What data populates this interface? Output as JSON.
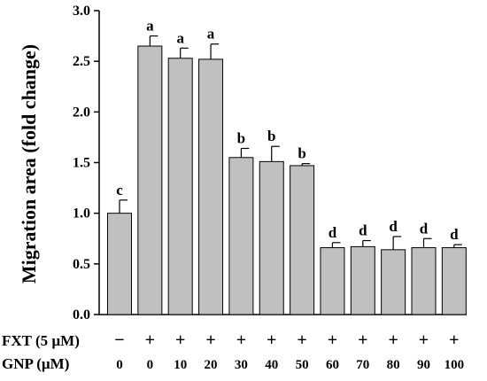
{
  "chart_data": {
    "type": "bar",
    "title": "",
    "xlabel": "",
    "ylabel": "Migration area (fold change)",
    "ylim": [
      0,
      3.0
    ],
    "yticks": [
      "0.0",
      "0.5",
      "1.0",
      "1.5",
      "2.0",
      "2.5",
      "3.0"
    ],
    "grid": false,
    "legend": "none",
    "bar_color": "#c0c0c0",
    "edge_color": "#000000",
    "row_labels": [
      "FXT (5 µM)",
      "GNP (µM)"
    ],
    "fxt": [
      "−",
      "+",
      "+",
      "+",
      "+",
      "+",
      "+",
      "+",
      "+",
      "+",
      "+",
      "+"
    ],
    "categories": [
      "0",
      "0",
      "10",
      "20",
      "30",
      "40",
      "50",
      "60",
      "70",
      "80",
      "90",
      "100"
    ],
    "values": [
      1.0,
      2.65,
      2.53,
      2.52,
      1.55,
      1.51,
      1.47,
      0.66,
      0.67,
      0.64,
      0.66,
      0.66
    ],
    "errors": [
      0.13,
      0.1,
      0.1,
      0.15,
      0.09,
      0.15,
      0.02,
      0.05,
      0.06,
      0.13,
      0.09,
      0.03
    ],
    "significance": [
      "c",
      "a",
      "a",
      "a",
      "b",
      "b",
      "b",
      "d",
      "d",
      "d",
      "d",
      "d"
    ]
  }
}
